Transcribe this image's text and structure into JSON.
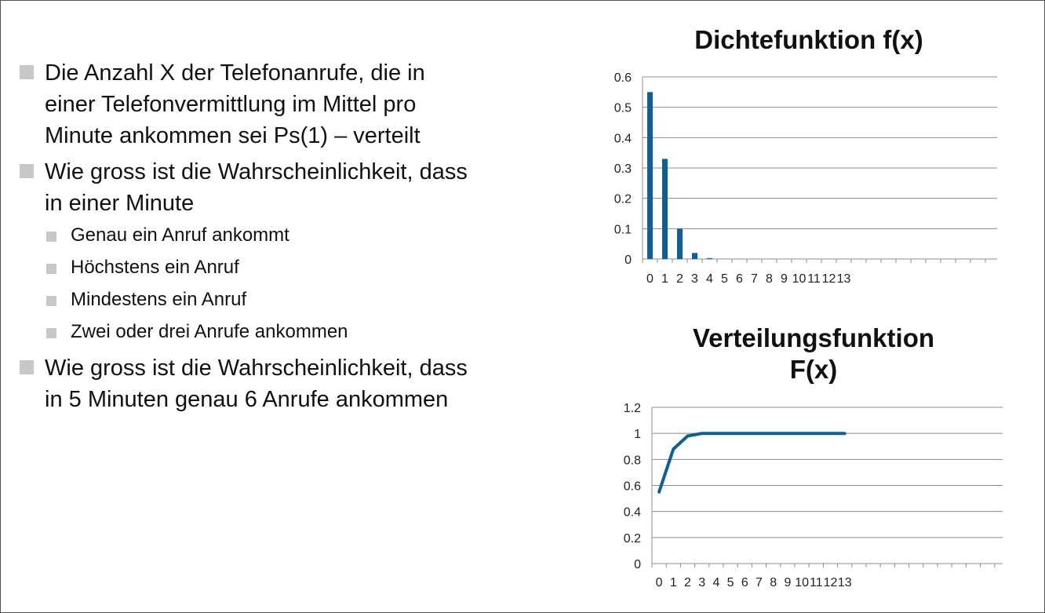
{
  "bullets": [
    {
      "text": "Die Anzahl X der Telefonanrufe, die in einer Telefonvermittlung im Mittel pro Minute ankommen sei Ps(1) – verteilt"
    },
    {
      "text": "Wie gross ist die Wahrscheinlichkeit, dass in einer Minute",
      "sub": [
        "Genau ein Anruf ankommt",
        "Höchstens ein Anruf",
        "Mindestens ein Anruf",
        "Zwei oder drei Anrufe ankommen"
      ]
    },
    {
      "text": "Wie gross ist die Wahrscheinlichkeit, dass in 5 Minuten genau 6 Anrufe ankommen"
    }
  ],
  "colors": {
    "series": "#0d5f9a",
    "grid": "#8c8c8c",
    "bullet": "#c8c8c8"
  },
  "chart_data": [
    {
      "type": "bar",
      "title": "Dichtefunktion f(x)",
      "categories": [
        "0",
        "1",
        "2",
        "3",
        "4",
        "5",
        "6",
        "7",
        "8",
        "9",
        "10",
        "11",
        "12",
        "13"
      ],
      "values": [
        0.55,
        0.33,
        0.1,
        0.02,
        0.003,
        0,
        0,
        0,
        0,
        0,
        0,
        0,
        0,
        0
      ],
      "ylim": [
        0,
        0.6
      ],
      "yticks": [
        "0",
        "0.1",
        "0.2",
        "0.3",
        "0.4",
        "0.5",
        "0.6"
      ],
      "grid": true,
      "legend": "none"
    },
    {
      "type": "line",
      "title": "Verteilungsfunktion F(x)",
      "categories": [
        "0",
        "1",
        "2",
        "3",
        "4",
        "5",
        "6",
        "7",
        "8",
        "9",
        "10",
        "11",
        "12",
        "13"
      ],
      "values": [
        0.55,
        0.88,
        0.98,
        1.0,
        1.0,
        1.0,
        1.0,
        1.0,
        1.0,
        1.0,
        1.0,
        1.0,
        1.0,
        1.0
      ],
      "ylim": [
        0,
        1.2
      ],
      "yticks": [
        "0",
        "0.2",
        "0.4",
        "0.6",
        "0.8",
        "1",
        "1.2"
      ],
      "grid": true,
      "legend": "none"
    }
  ]
}
